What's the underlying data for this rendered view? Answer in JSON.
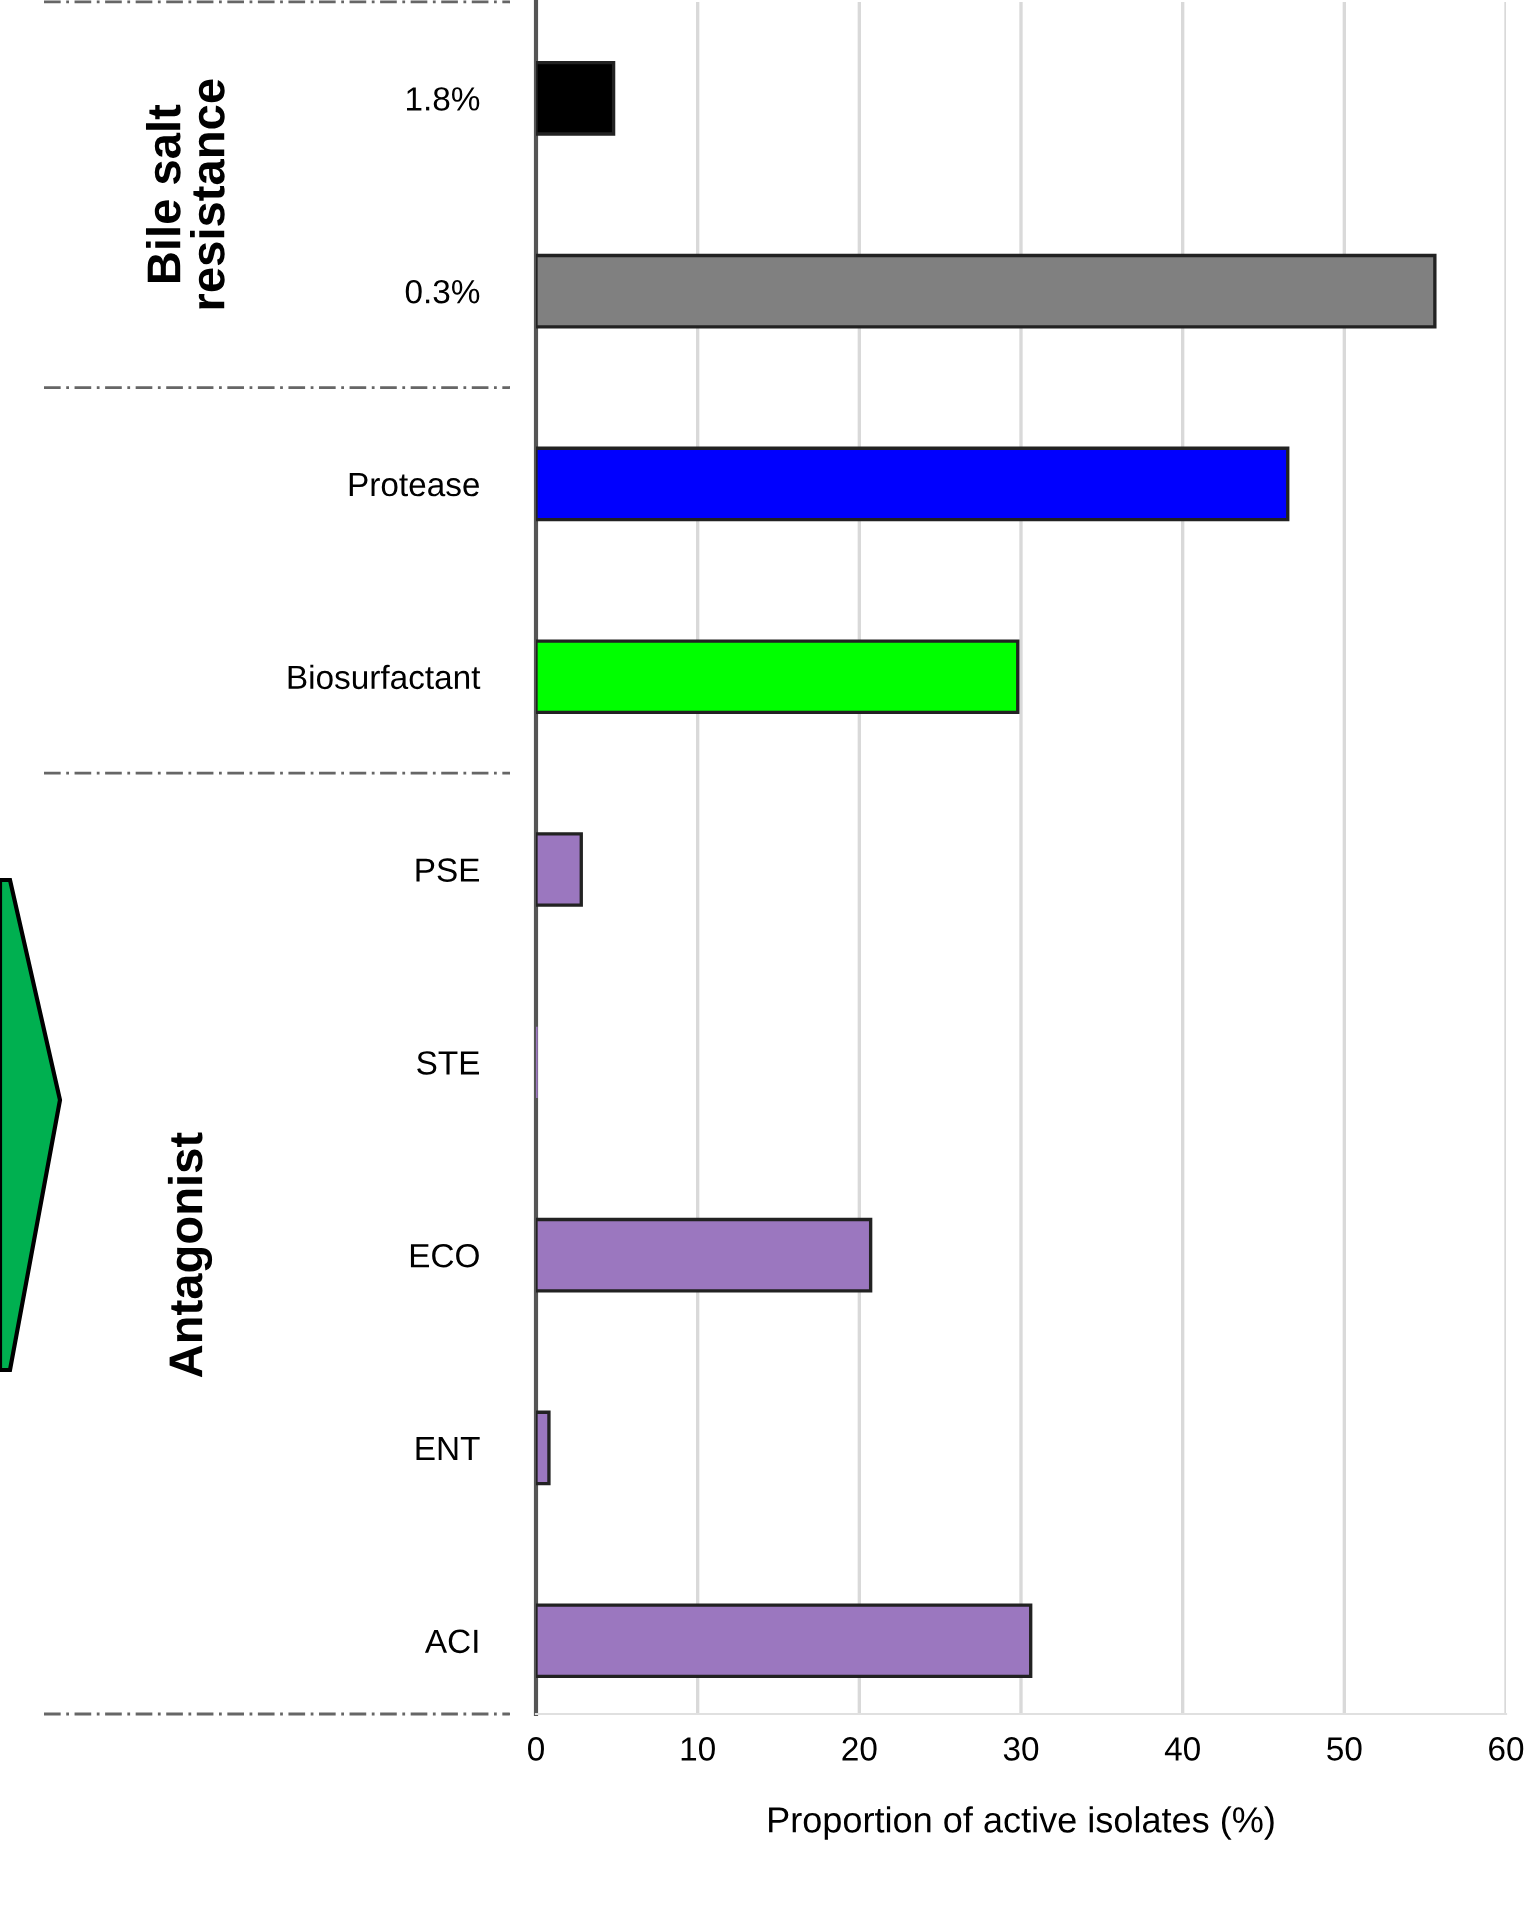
{
  "chart_data": {
    "type": "bar",
    "orientation": "horizontal",
    "xlabel": "Proportion of active isolates (%)",
    "categories": [
      "1.8%",
      "0.3%",
      "Protease",
      "Biosurfactant",
      "PSE",
      "STE",
      "ECO",
      "ENT",
      "ACI"
    ],
    "values": [
      4.8,
      55.6,
      46.5,
      29.8,
      2.8,
      0,
      20.7,
      0.8,
      30.6
    ],
    "colors": [
      "#000000",
      "#808080",
      "#0000ff",
      "#00ff00",
      "#9b77bf",
      "#9b77bf",
      "#9b77bf",
      "#9b77bf",
      "#9b77bf"
    ],
    "xlim": [
      0,
      60
    ],
    "xticks": [
      0,
      10,
      20,
      30,
      40,
      50,
      60
    ],
    "grid": "x",
    "annotations": [
      "Bile salt\nresistance",
      "Antagonist"
    ]
  }
}
